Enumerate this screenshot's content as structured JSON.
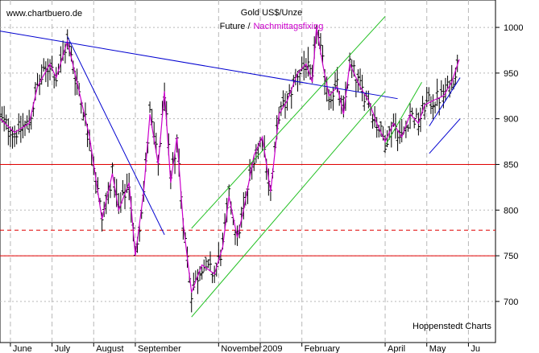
{
  "chart_data": {
    "type": "ohlc",
    "title": "Gold US$/Unze",
    "subtitle_prefix": "Future /",
    "subtitle_highlight": "Nachmittagsfixing",
    "watermark": "www.chartbuero.de",
    "credit": "Hoppenstedt Charts",
    "y_ticks": [
      700,
      750,
      800,
      850,
      900,
      950,
      1000
    ],
    "ylim": [
      655,
      1030
    ],
    "months": [
      "June",
      "July",
      "August",
      "September",
      "November",
      "2009",
      "February",
      "April",
      "May",
      "Ju"
    ],
    "month_positions": [
      0.6,
      1.6,
      2.6,
      3.6,
      5.6,
      6.6,
      7.6,
      9.6,
      10.6,
      11.6
    ],
    "xlim": [
      0.35,
      12.25
    ],
    "support_lines": [
      {
        "value": 850,
        "style": "solid"
      },
      {
        "value": 778,
        "style": "dashed"
      },
      {
        "value": 750,
        "style": "solid"
      }
    ],
    "trendlines": [
      {
        "color": "blue",
        "from": [
          0.35,
          996
        ],
        "to": [
          9.9,
          922
        ]
      },
      {
        "color": "blue",
        "from": [
          1.97,
          990
        ],
        "to": [
          4.3,
          773
        ]
      },
      {
        "color": "green",
        "from": [
          4.95,
          683
        ],
        "to": [
          9.6,
          930
        ]
      },
      {
        "color": "green",
        "from": [
          4.95,
          780
        ],
        "to": [
          9.6,
          1012
        ]
      },
      {
        "color": "green",
        "from": [
          9.62,
          872
        ],
        "to": [
          10.48,
          940
        ]
      },
      {
        "color": "blue",
        "from": [
          10.66,
          862
        ],
        "to": [
          11.4,
          900
        ]
      },
      {
        "color": "blue",
        "from": [
          10.66,
          892
        ],
        "to": [
          11.4,
          945
        ]
      }
    ],
    "price_path": [
      [
        0.35,
        900
      ],
      [
        0.7,
        885
      ],
      [
        1.05,
        895
      ],
      [
        1.25,
        935
      ],
      [
        1.55,
        960
      ],
      [
        1.7,
        945
      ],
      [
        1.97,
        985
      ],
      [
        2.2,
        940
      ],
      [
        2.5,
        880
      ],
      [
        2.8,
        790
      ],
      [
        3.05,
        840
      ],
      [
        3.2,
        800
      ],
      [
        3.45,
        830
      ],
      [
        3.6,
        750
      ],
      [
        3.8,
        820
      ],
      [
        3.95,
        905
      ],
      [
        4.15,
        850
      ],
      [
        4.3,
        930
      ],
      [
        4.45,
        830
      ],
      [
        4.6,
        880
      ],
      [
        4.75,
        785
      ],
      [
        4.95,
        710
      ],
      [
        5.2,
        740
      ],
      [
        5.5,
        730
      ],
      [
        5.7,
        760
      ],
      [
        5.85,
        815
      ],
      [
        6.05,
        770
      ],
      [
        6.2,
        800
      ],
      [
        6.45,
        860
      ],
      [
        6.65,
        880
      ],
      [
        6.85,
        820
      ],
      [
        7.05,
        905
      ],
      [
        7.25,
        920
      ],
      [
        7.5,
        950
      ],
      [
        7.7,
        960
      ],
      [
        7.85,
        940
      ],
      [
        7.95,
        1000
      ],
      [
        8.1,
        960
      ],
      [
        8.25,
        925
      ],
      [
        8.45,
        935
      ],
      [
        8.6,
        905
      ],
      [
        8.75,
        960
      ],
      [
        9.0,
        935
      ],
      [
        9.2,
        920
      ],
      [
        9.4,
        895
      ],
      [
        9.6,
        875
      ],
      [
        9.8,
        895
      ],
      [
        10.0,
        880
      ],
      [
        10.2,
        905
      ],
      [
        10.4,
        895
      ],
      [
        10.55,
        915
      ],
      [
        10.75,
        920
      ],
      [
        11.0,
        925
      ],
      [
        11.2,
        940
      ],
      [
        11.38,
        965
      ]
    ]
  }
}
